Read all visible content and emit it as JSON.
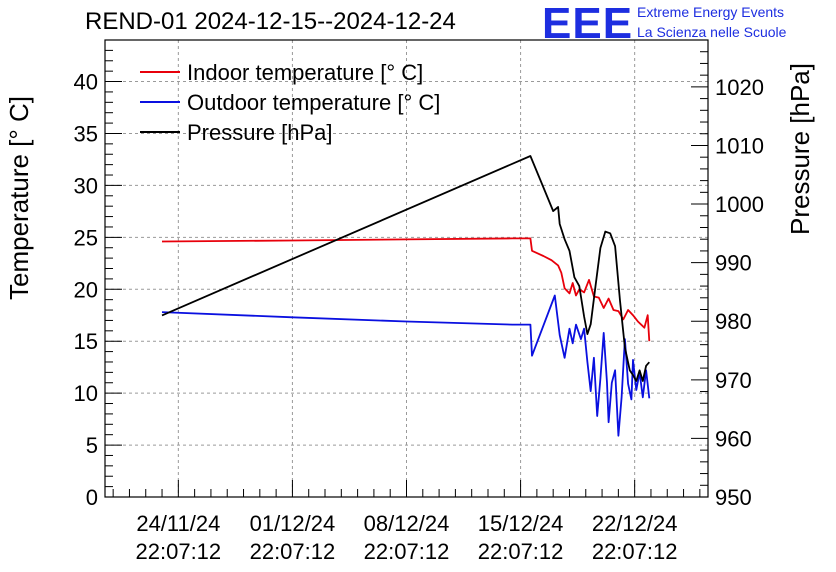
{
  "header": {
    "title": "REND-01 2024-12-15--2024-12-24",
    "logo_mark": "EEE",
    "logo_line1": "Extreme Energy Events",
    "logo_line2": "La Scienza nelle Scuole"
  },
  "colors": {
    "indoor": "#e8000b",
    "outdoor": "#0a10e0",
    "pressure": "#000000",
    "logo": "#1d2ee0"
  },
  "chart_data": {
    "type": "line",
    "title": "REND-01 2024-12-15--2024-12-24",
    "xlabel": "",
    "ylabel": "Temperature [° C]",
    "y2label": "Pressure [hPa]",
    "xlim": [
      -4.5,
      32.5
    ],
    "ylim": [
      0,
      44
    ],
    "y2lim": [
      950,
      1028
    ],
    "yticks": [
      0,
      5,
      10,
      15,
      20,
      25,
      30,
      35,
      40
    ],
    "y2ticks": [
      950,
      960,
      970,
      980,
      990,
      1000,
      1010,
      1020
    ],
    "xticks": [
      {
        "x": 0,
        "date": "24/11/24",
        "time": "22:07:12"
      },
      {
        "x": 7,
        "date": "01/12/24",
        "time": "22:07:12"
      },
      {
        "x": 14,
        "date": "08/12/24",
        "time": "22:07:12"
      },
      {
        "x": 21,
        "date": "15/12/24",
        "time": "22:07:12"
      },
      {
        "x": 28,
        "date": "22/12/24",
        "time": "22:07:12"
      }
    ],
    "x_units": "days since 24/11/24 22:07:12",
    "grid": true,
    "legend_position": "top-left",
    "series": [
      {
        "name": "Indoor temperature [° C]",
        "axis": "left",
        "color": "#e8000b",
        "x": [
          -1,
          7,
          14,
          20.5,
          21.6,
          21.7,
          22.4,
          22.9,
          23.3,
          23.5,
          23.7,
          24.0,
          24.2,
          24.4,
          24.6,
          24.9,
          25.2,
          25.5,
          25.8,
          26.1,
          26.4,
          26.7,
          27.0,
          27.3,
          27.6,
          27.9,
          28.2,
          28.6,
          28.8,
          28.9
        ],
        "y": [
          24.6,
          24.7,
          24.8,
          24.9,
          24.9,
          23.7,
          23.2,
          22.8,
          22.3,
          21.6,
          20.1,
          19.6,
          20.6,
          19.4,
          20.0,
          19.7,
          20.9,
          19.3,
          19.2,
          18.2,
          19.1,
          18.0,
          17.9,
          17.1,
          18.0,
          17.5,
          16.9,
          16.3,
          17.5,
          15.0
        ]
      },
      {
        "name": "Outdoor temperature [° C]",
        "axis": "left",
        "color": "#0a10e0",
        "x": [
          -1,
          7,
          14,
          20.5,
          21.6,
          21.7,
          23.1,
          23.4,
          23.7,
          24.0,
          24.2,
          24.4,
          24.7,
          24.9,
          25.1,
          25.3,
          25.5,
          25.7,
          25.9,
          26.1,
          26.3,
          26.4,
          26.6,
          26.8,
          27.0,
          27.2,
          27.4,
          27.6,
          27.8,
          27.9,
          28.1,
          28.3,
          28.5,
          28.7,
          28.9
        ],
        "y": [
          17.8,
          17.3,
          16.9,
          16.6,
          16.6,
          13.6,
          19.4,
          15.6,
          13.4,
          16.2,
          14.8,
          16.6,
          15.2,
          16.2,
          13.0,
          10.2,
          13.4,
          7.8,
          11.4,
          15.8,
          11.0,
          7.2,
          11.0,
          12.2,
          5.9,
          9.6,
          15.2,
          10.9,
          9.4,
          13.2,
          10.3,
          12.0,
          9.6,
          12.2,
          9.5
        ]
      },
      {
        "name": "Pressure [hPa]",
        "axis": "right",
        "color": "#000000",
        "x": [
          -1,
          21.6,
          22.3,
          23.0,
          23.3,
          23.4,
          23.7,
          24.0,
          24.3,
          24.6,
          24.9,
          25.1,
          25.3,
          25.6,
          25.9,
          26.2,
          26.5,
          26.8,
          27.1,
          27.4,
          27.7,
          27.9,
          28.1,
          28.3,
          28.5,
          28.7,
          28.9
        ],
        "y": [
          981,
          1008.2,
          1003.5,
          998.8,
          999.5,
          996.6,
          994,
          992,
          987.5,
          986,
          980.8,
          977.8,
          979.5,
          986,
          992.5,
          995.3,
          995,
          992.8,
          983.5,
          975.5,
          971.6,
          970.8,
          969.8,
          971.6,
          969.8,
          972.4,
          973
        ]
      }
    ]
  }
}
